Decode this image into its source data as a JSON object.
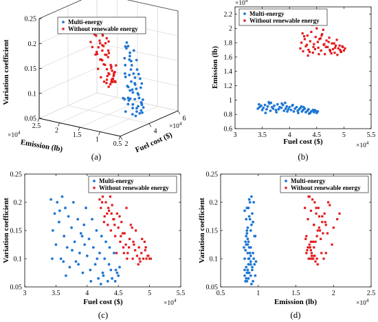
{
  "chart_data": [
    {
      "panel": "(a)",
      "type": "scatter",
      "title": "",
      "xlabel": "Fuel cost ($)",
      "ylabel": "Emission (lb)",
      "zlabel": "Variation coefficient",
      "x_exponent": "×10^4",
      "y_exponent": "×10^4",
      "xlim": [
        2,
        6
      ],
      "ylim": [
        0.5,
        2.5
      ],
      "zlim": [
        0.05,
        0.25
      ],
      "x_ticks": [
        "2",
        "4",
        "6"
      ],
      "y_ticks": [
        "2.5",
        "2",
        "1.5",
        "1",
        "0.5"
      ],
      "z_ticks": [
        "0.05",
        "0.1",
        "0.15",
        "0.2",
        "0.25"
      ],
      "grid": true,
      "legend": {
        "position": "top-left",
        "entries": [
          "Multi-energy",
          "Without renewable energy"
        ]
      },
      "series": [
        {
          "name": "Multi-energy",
          "color": "#1f77d4",
          "marker": "dot",
          "x": [
            3.42,
            3.45,
            3.48,
            3.5,
            3.52,
            3.55,
            3.58,
            3.6,
            3.63,
            3.65,
            3.68,
            3.7,
            3.72,
            3.75,
            3.78,
            3.8,
            3.82,
            3.85,
            3.88,
            3.9,
            3.93,
            3.95,
            3.98,
            4.0,
            4.03,
            4.05,
            4.08,
            4.1,
            4.13,
            4.15,
            4.18,
            4.2,
            4.23,
            4.25,
            4.28,
            4.3,
            4.33,
            4.35,
            4.38,
            4.4,
            4.43,
            4.45,
            4.48,
            4.5,
            4.52,
            3.44,
            3.56,
            3.66,
            3.76,
            3.86,
            3.96,
            4.06,
            4.16,
            4.26,
            4.36,
            4.46,
            3.62,
            3.92,
            4.22
          ],
          "y": [
            0.88,
            0.9,
            0.92,
            0.86,
            0.89,
            0.93,
            0.87,
            0.91,
            0.95,
            0.85,
            0.9,
            0.88,
            0.92,
            0.86,
            0.94,
            0.87,
            0.9,
            0.89,
            0.93,
            0.85,
            0.88,
            0.91,
            0.87,
            0.9,
            0.86,
            0.92,
            0.84,
            0.88,
            0.9,
            0.85,
            0.87,
            0.89,
            0.84,
            0.86,
            0.88,
            0.83,
            0.85,
            0.87,
            0.82,
            0.84,
            0.86,
            0.83,
            0.85,
            0.82,
            0.84,
            0.94,
            0.82,
            0.96,
            0.83,
            0.95,
            0.84,
            0.93,
            0.82,
            0.9,
            0.81,
            0.86,
            0.97,
            0.96,
            0.91
          ],
          "z": [
            0.205,
            0.15,
            0.18,
            0.125,
            0.2,
            0.165,
            0.1,
            0.21,
            0.14,
            0.19,
            0.12,
            0.175,
            0.085,
            0.155,
            0.2,
            0.13,
            0.095,
            0.17,
            0.11,
            0.145,
            0.075,
            0.16,
            0.19,
            0.105,
            0.135,
            0.08,
            0.17,
            0.12,
            0.09,
            0.15,
            0.065,
            0.11,
            0.14,
            0.075,
            0.1,
            0.13,
            0.06,
            0.09,
            0.08,
            0.065,
            0.11,
            0.06,
            0.075,
            0.07,
            0.085,
            0.1,
            0.185,
            0.07,
            0.115,
            0.09,
            0.125,
            0.06,
            0.1,
            0.07,
            0.12,
            0.08,
            0.095,
            0.14,
            0.055
          ]
        },
        {
          "name": "Without renewable energy",
          "color": "#e31a1c",
          "marker": "square",
          "x": [
            4.2,
            4.22,
            4.25,
            4.28,
            4.3,
            4.33,
            4.35,
            4.38,
            4.4,
            4.43,
            4.45,
            4.48,
            4.5,
            4.53,
            4.55,
            4.58,
            4.6,
            4.63,
            4.65,
            4.68,
            4.7,
            4.73,
            4.75,
            4.78,
            4.8,
            4.83,
            4.85,
            4.88,
            4.9,
            4.93,
            4.95,
            4.98,
            5.0,
            5.02,
            4.24,
            4.32,
            4.42,
            4.52,
            4.62,
            4.72,
            4.82,
            4.92,
            4.27,
            4.37,
            4.47,
            4.57,
            4.67,
            4.77,
            4.87,
            4.97,
            4.34,
            4.44,
            4.54,
            4.64,
            4.74,
            4.84,
            4.94,
            4.39,
            4.59
          ],
          "y": [
            1.72,
            1.8,
            1.68,
            1.85,
            1.75,
            1.9,
            1.7,
            1.82,
            1.95,
            1.66,
            1.78,
            1.88,
            2.0,
            1.73,
            1.85,
            1.69,
            1.92,
            1.77,
            1.64,
            1.83,
            1.74,
            1.87,
            1.68,
            1.79,
            1.71,
            1.66,
            1.76,
            1.63,
            1.72,
            1.7,
            1.67,
            1.74,
            1.69,
            1.72,
            1.93,
            1.77,
            2.05,
            1.81,
            1.98,
            1.81,
            1.79,
            1.76,
            1.89,
            1.67,
            1.71,
            1.86,
            1.74,
            1.65,
            1.84,
            1.75,
            1.62,
            1.74,
            1.64,
            1.78,
            1.7,
            1.73,
            1.68,
            2.08,
            1.9
          ],
          "z": [
            0.205,
            0.19,
            0.21,
            0.175,
            0.2,
            0.16,
            0.185,
            0.15,
            0.195,
            0.17,
            0.14,
            0.18,
            0.155,
            0.13,
            0.165,
            0.12,
            0.145,
            0.19,
            0.11,
            0.135,
            0.16,
            0.1,
            0.125,
            0.15,
            0.105,
            0.12,
            0.095,
            0.135,
            0.1,
            0.115,
            0.1,
            0.105,
            0.1,
            0.1,
            0.2,
            0.18,
            0.17,
            0.175,
            0.125,
            0.155,
            0.09,
            0.13,
            0.165,
            0.21,
            0.11,
            0.145,
            0.12,
            0.115,
            0.11,
            0.105,
            0.19,
            0.16,
            0.14,
            0.1,
            0.13,
            0.1,
            0.12,
            0.18,
            0.11
          ]
        }
      ]
    },
    {
      "panel": "(b)",
      "type": "scatter",
      "title": "",
      "xlabel": "Fuel cost ($)",
      "ylabel": "Emission (lb)",
      "x_exponent": "×10^4",
      "y_exponent": "×10^4",
      "xlim": [
        3,
        5.5
      ],
      "ylim": [
        0.6,
        2.3
      ],
      "x_ticks": [
        "3",
        "3.5",
        "4",
        "4.5",
        "5",
        "5.5"
      ],
      "y_ticks": [
        "0.6",
        "0.8",
        "1",
        "1.2",
        "1.4",
        "1.6",
        "1.8",
        "2",
        "2.2"
      ],
      "legend": {
        "position": "top",
        "entries": [
          "Multi-energy",
          "Without renewable energy"
        ]
      },
      "series": [
        {
          "name": "Multi-energy",
          "shares_data_with": "(a)"
        },
        {
          "name": "Without renewable energy",
          "shares_data_with": "(a)"
        }
      ]
    },
    {
      "panel": "(c)",
      "type": "scatter",
      "title": "",
      "xlabel": "Fuel cost ($)",
      "ylabel": "Variation coefficient",
      "x_exponent": "×10^4",
      "xlim": [
        3,
        5.5
      ],
      "ylim": [
        0.05,
        0.25
      ],
      "x_ticks": [
        "3",
        "3.5",
        "4",
        "4.5",
        "5",
        "5.5"
      ],
      "y_ticks": [
        "0.05",
        "0.1",
        "0.15",
        "0.2",
        "0.25"
      ],
      "legend": {
        "position": "top-right",
        "entries": [
          "Multi-energy",
          "Without renewable energy"
        ]
      },
      "series": [
        {
          "name": "Multi-energy",
          "shares_data_with": "(a)"
        },
        {
          "name": "Without renewable energy",
          "shares_data_with": "(a)"
        }
      ]
    },
    {
      "panel": "(d)",
      "type": "scatter",
      "title": "",
      "xlabel": "Emission (lb)",
      "ylabel": "Variation coefficient",
      "x_exponent": "×10^4",
      "xlim": [
        0.5,
        2.5
      ],
      "ylim": [
        0.05,
        0.25
      ],
      "x_ticks": [
        "0.5",
        "1",
        "1.5",
        "2",
        "2.5"
      ],
      "y_ticks": [
        "0.05",
        "0.1",
        "0.15",
        "0.2",
        "0.25"
      ],
      "legend": {
        "position": "top-right",
        "entries": [
          "Multi-energy",
          "Without renewable energy"
        ]
      },
      "series": [
        {
          "name": "Multi-energy",
          "shares_data_with": "(a)"
        },
        {
          "name": "Without renewable energy",
          "shares_data_with": "(a)"
        }
      ]
    }
  ],
  "captions": [
    "(a)",
    "(b)",
    "(c)",
    "(d)"
  ],
  "exponent_label": "×10",
  "exponent_power": "4",
  "colors": {
    "multi": "#1f77d4",
    "norenew": "#e31a1c"
  }
}
